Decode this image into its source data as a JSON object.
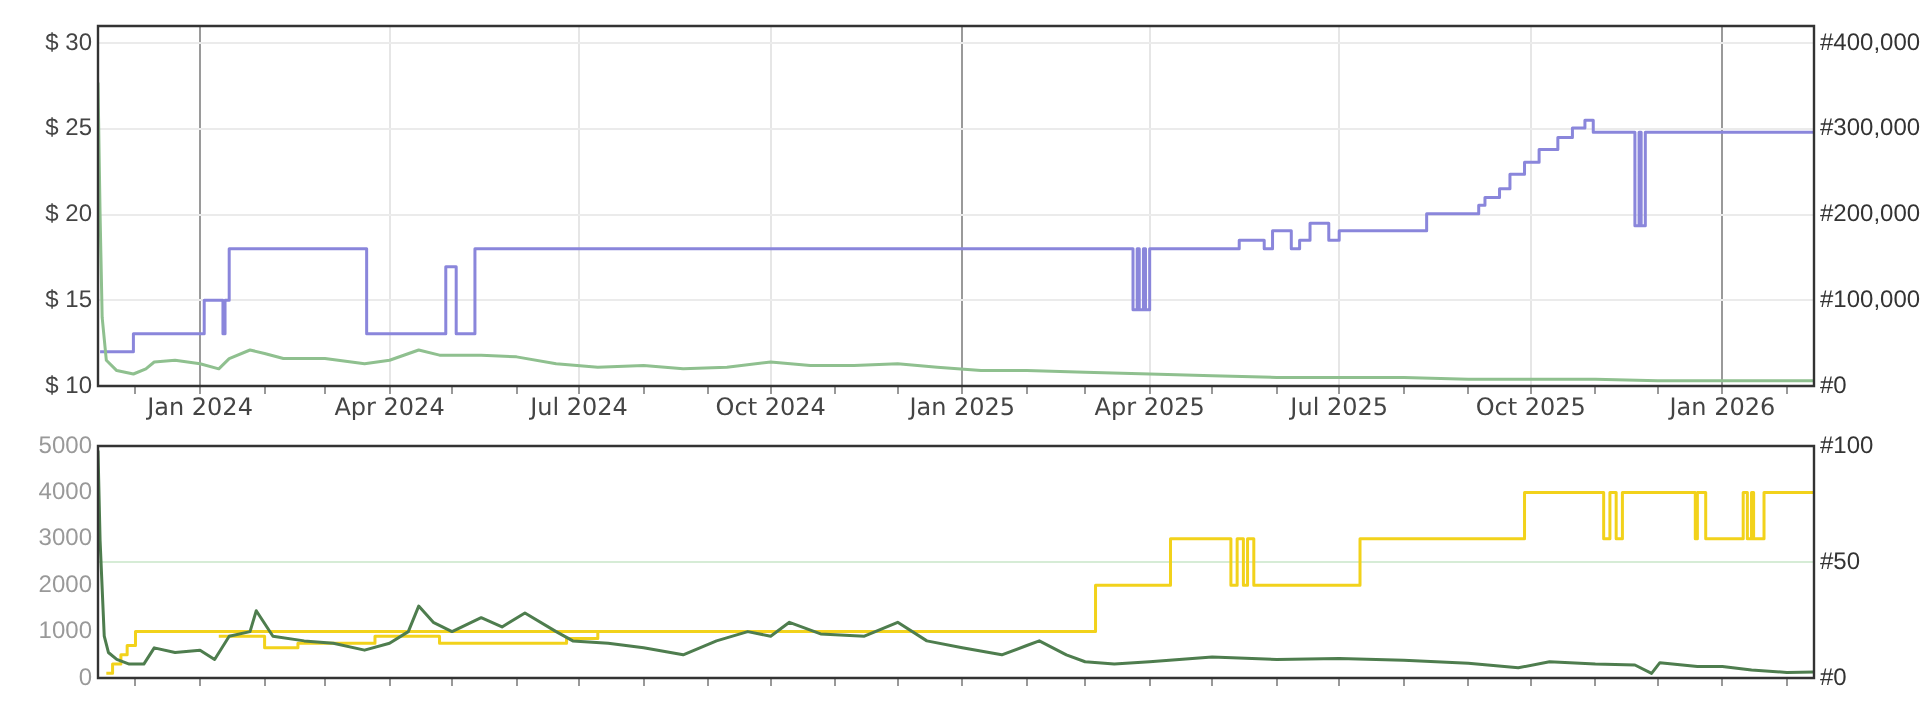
{
  "chart_data": [
    {
      "type": "step",
      "xlim": [
        "2023-11-13",
        "2026-02-14"
      ],
      "xticks": [
        {
          "value": "2023-12",
          "label": null
        },
        {
          "value": "2024-01",
          "label": "Jan 2024"
        },
        {
          "value": "2024-02",
          "label": null
        },
        {
          "value": "2024-03",
          "label": null
        },
        {
          "value": "2024-04",
          "label": "Apr 2024"
        },
        {
          "value": "2024-05",
          "label": null
        },
        {
          "value": "2024-06",
          "label": null
        },
        {
          "value": "2024-07",
          "label": "Jul 2024"
        },
        {
          "value": "2024-08",
          "label": null
        },
        {
          "value": "2024-09",
          "label": null
        },
        {
          "value": "2024-10",
          "label": "Oct 2024"
        },
        {
          "value": "2024-11",
          "label": null
        },
        {
          "value": "2024-12",
          "label": null
        },
        {
          "value": "2025-01",
          "label": "Jan 2025"
        },
        {
          "value": "2025-02",
          "label": null
        },
        {
          "value": "2025-03",
          "label": null
        },
        {
          "value": "2025-04",
          "label": "Apr 2025"
        },
        {
          "value": "2025-05",
          "label": null
        },
        {
          "value": "2025-06",
          "label": null
        },
        {
          "value": "2025-07",
          "label": "Jul 2025"
        },
        {
          "value": "2025-08",
          "label": null
        },
        {
          "value": "2025-09",
          "label": null
        },
        {
          "value": "2025-10",
          "label": "Oct 2025"
        },
        {
          "value": "2025-11",
          "label": null
        },
        {
          "value": "2025-12",
          "label": null
        },
        {
          "value": "2026-01",
          "label": "Jan 2026"
        },
        {
          "value": "2026-02",
          "label": null
        }
      ],
      "ylim": [
        10,
        31
      ],
      "yticks": [
        {
          "value": 10,
          "label": "$ 10"
        },
        {
          "value": 15,
          "label": "$ 15"
        },
        {
          "value": 20,
          "label": "$ 20"
        },
        {
          "value": 25,
          "label": "$ 25"
        },
        {
          "value": 30,
          "label": "$ 30"
        }
      ],
      "y2lim": [
        0,
        420000
      ],
      "y2ticks": [
        {
          "value": 0,
          "label": "#0"
        },
        {
          "value": 100000,
          "label": "#100,000"
        },
        {
          "value": 200000,
          "label": "#200,000"
        },
        {
          "value": 300000,
          "label": "#300,000"
        },
        {
          "value": 400000,
          "label": "#400,000"
        }
      ],
      "grid": true,
      "series": [
        {
          "type": "line",
          "color": "#8fc08f",
          "x": [
            "2023-11-13",
            "2023-11-14",
            "2023-11-15",
            "2023-11-17",
            "2023-11-22",
            "2023-11-30",
            "2023-12-06",
            "2023-12-10",
            "2023-12-20",
            "2024-01-01",
            "2024-01-10",
            "2024-01-15",
            "2024-01-25",
            "2024-02-01",
            "2024-02-10",
            "2024-03-01",
            "2024-03-20",
            "2024-04-01",
            "2024-04-15",
            "2024-04-25",
            "2024-05-15",
            "2024-06-01",
            "2024-06-20",
            "2024-07-10",
            "2024-08-01",
            "2024-08-20",
            "2024-09-10",
            "2024-10-01",
            "2024-10-20",
            "2024-11-10",
            "2024-12-01",
            "2024-12-20",
            "2025-01-10",
            "2025-02-01",
            "2025-03-01",
            "2025-04-01",
            "2025-05-01",
            "2025-06-01",
            "2025-07-01",
            "2025-08-01",
            "2025-09-01",
            "2025-10-01",
            "2025-11-01",
            "2025-12-01",
            "2026-01-01",
            "2026-02-14"
          ],
          "values": [
            27.7,
            20,
            14,
            11.5,
            10.9,
            10.7,
            11.0,
            11.4,
            11.5,
            11.3,
            11.0,
            11.6,
            12.1,
            11.9,
            11.6,
            11.6,
            11.3,
            11.5,
            12.1,
            11.8,
            11.8,
            11.7,
            11.3,
            11.1,
            11.2,
            11.0,
            11.1,
            11.4,
            11.2,
            11.2,
            11.3,
            11.1,
            10.9,
            10.9,
            10.8,
            10.7,
            10.6,
            10.5,
            10.5,
            10.5,
            10.4,
            10.4,
            10.4,
            10.3,
            10.3,
            10.3
          ]
        },
        {
          "type": "step",
          "color": "#8a86db",
          "axis": "y2",
          "x": [
            "2023-11-14",
            "2023-11-30",
            "2024-01-03",
            "2024-01-12",
            "2024-01-13",
            "2024-01-15",
            "2024-03-21",
            "2024-04-28",
            "2024-05-03",
            "2024-05-12",
            "2025-03-24",
            "2025-03-26",
            "2025-03-27",
            "2025-03-29",
            "2025-03-30",
            "2025-04-01",
            "2025-05-14",
            "2025-05-26",
            "2025-05-30",
            "2025-06-08",
            "2025-06-12",
            "2025-06-17",
            "2025-06-26",
            "2025-07-01",
            "2025-08-12",
            "2025-09-06",
            "2025-09-09",
            "2025-09-16",
            "2025-09-21",
            "2025-09-28",
            "2025-10-05",
            "2025-10-14",
            "2025-10-21",
            "2025-10-27",
            "2025-10-31",
            "2025-11-20",
            "2025-11-22",
            "2025-11-23",
            "2025-11-25",
            "2026-02-14"
          ],
          "values": [
            40000,
            61000,
            100000,
            61000,
            100000,
            160000,
            61000,
            139000,
            61000,
            160000,
            89000,
            160000,
            89000,
            160000,
            89000,
            160000,
            170000,
            160000,
            181000,
            160000,
            170000,
            190000,
            170000,
            181000,
            201000,
            211000,
            220000,
            230000,
            247000,
            261000,
            276000,
            290000,
            301000,
            310000,
            296000,
            187000,
            296000,
            187000,
            296000,
            296000
          ]
        }
      ]
    },
    {
      "type": "step",
      "xlim": [
        "2023-11-13",
        "2026-02-14"
      ],
      "xticks": [
        {
          "value": "2023-12",
          "label": null
        },
        {
          "value": "2024-01",
          "label": null
        },
        {
          "value": "2024-02",
          "label": null
        },
        {
          "value": "2024-03",
          "label": null
        },
        {
          "value": "2024-04",
          "label": null
        },
        {
          "value": "2024-05",
          "label": null
        },
        {
          "value": "2024-06",
          "label": null
        },
        {
          "value": "2024-07",
          "label": null
        },
        {
          "value": "2024-08",
          "label": null
        },
        {
          "value": "2024-09",
          "label": null
        },
        {
          "value": "2024-10",
          "label": null
        },
        {
          "value": "2024-11",
          "label": null
        },
        {
          "value": "2024-12",
          "label": null
        },
        {
          "value": "2025-01",
          "label": null
        },
        {
          "value": "2025-02",
          "label": null
        },
        {
          "value": "2025-03",
          "label": null
        },
        {
          "value": "2025-04",
          "label": null
        },
        {
          "value": "2025-05",
          "label": null
        },
        {
          "value": "2025-06",
          "label": null
        },
        {
          "value": "2025-07",
          "label": null
        },
        {
          "value": "2025-08",
          "label": null
        },
        {
          "value": "2025-09",
          "label": null
        },
        {
          "value": "2025-10",
          "label": null
        },
        {
          "value": "2025-11",
          "label": null
        },
        {
          "value": "2025-12",
          "label": null
        },
        {
          "value": "2026-01",
          "label": null
        },
        {
          "value": "2026-02",
          "label": null
        }
      ],
      "ylim": [
        0,
        5000
      ],
      "yticks": [
        0,
        1000,
        2000,
        3000,
        4000,
        5000
      ],
      "y2lim": [
        0,
        100
      ],
      "y2ticks": [
        {
          "value": 0,
          "label": "#0"
        },
        {
          "value": 50,
          "label": "#50"
        },
        {
          "value": 100,
          "label": "#100"
        }
      ],
      "grid": "x",
      "tick_labels": "y",
      "ref_lines": [
        {
          "axis": "y2",
          "value": 50,
          "color": "#d6ecd6"
        }
      ],
      "series": [
        {
          "type": "line",
          "color": "#4e7d4e",
          "x": [
            "2023-11-13",
            "2023-11-14",
            "2023-11-16",
            "2023-11-18",
            "2023-11-22",
            "2023-11-28",
            "2023-12-05",
            "2023-12-10",
            "2023-12-20",
            "2024-01-01",
            "2024-01-08",
            "2024-01-15",
            "2024-01-25",
            "2024-01-28",
            "2024-02-05",
            "2024-02-20",
            "2024-03-05",
            "2024-03-20",
            "2024-04-01",
            "2024-04-10",
            "2024-04-15",
            "2024-04-22",
            "2024-05-01",
            "2024-05-15",
            "2024-05-25",
            "2024-06-05",
            "2024-06-20",
            "2024-06-28",
            "2024-07-15",
            "2024-08-01",
            "2024-08-20",
            "2024-09-05",
            "2024-09-20",
            "2024-10-01",
            "2024-10-10",
            "2024-10-25",
            "2024-11-15",
            "2024-12-01",
            "2024-12-15",
            "2025-01-01",
            "2025-01-20",
            "2025-02-01",
            "2025-02-07",
            "2025-02-20",
            "2025-03-01",
            "2025-03-15",
            "2025-04-01",
            "2025-05-01",
            "2025-06-01",
            "2025-07-01",
            "2025-08-01",
            "2025-09-01",
            "2025-09-25",
            "2025-10-10",
            "2025-11-01",
            "2025-11-20",
            "2025-11-28",
            "2025-12-02",
            "2025-12-20",
            "2026-01-01",
            "2026-01-15",
            "2026-02-01",
            "2026-02-14"
          ],
          "values": [
            4900,
            2960,
            900,
            550,
            400,
            300,
            300,
            650,
            550,
            600,
            400,
            900,
            1000,
            1450,
            900,
            800,
            750,
            600,
            750,
            1000,
            1550,
            1200,
            1000,
            1300,
            1100,
            1400,
            1000,
            800,
            750,
            650,
            500,
            800,
            1000,
            900,
            1200,
            950,
            900,
            1200,
            800,
            650,
            500,
            700,
            800,
            500,
            350,
            300,
            350,
            450,
            400,
            420,
            380,
            320,
            220,
            350,
            300,
            280,
            100,
            330,
            250,
            250,
            170,
            120,
            130
          ]
        },
        {
          "type": "step",
          "color": "#f2d21b",
          "axis": "y2",
          "x": [
            "2023-11-17",
            "2023-11-20",
            "2023-11-24",
            "2023-11-27",
            "2023-12-01",
            "2025-03-06",
            "2025-04-11",
            "2025-05-10",
            "2025-05-13",
            "2025-05-16",
            "2025-05-18",
            "2025-05-21",
            "2025-07-11",
            "2025-09-28",
            "2025-11-05",
            "2025-11-08",
            "2025-11-11",
            "2025-11-14",
            "2025-12-19",
            "2025-12-20",
            "2025-12-24",
            "2026-01-11",
            "2026-01-13",
            "2026-01-15",
            "2026-01-16",
            "2026-01-21",
            "2026-02-14"
          ],
          "values": [
            2,
            6,
            10,
            14,
            20,
            40,
            60,
            40,
            60,
            40,
            60,
            40,
            60,
            80,
            60,
            80,
            60,
            80,
            60,
            80,
            60,
            80,
            60,
            80,
            60,
            80,
            80
          ]
        },
        {
          "type": "step",
          "color": "#f2d21b",
          "axis": "y2",
          "x": [
            "2024-01-10",
            "2024-02-01",
            "2024-02-17",
            "2024-03-25",
            "2024-04-25",
            "2024-06-25",
            "2024-07-10"
          ],
          "values": [
            18,
            13,
            15,
            18,
            15,
            17,
            20
          ]
        }
      ]
    }
  ]
}
